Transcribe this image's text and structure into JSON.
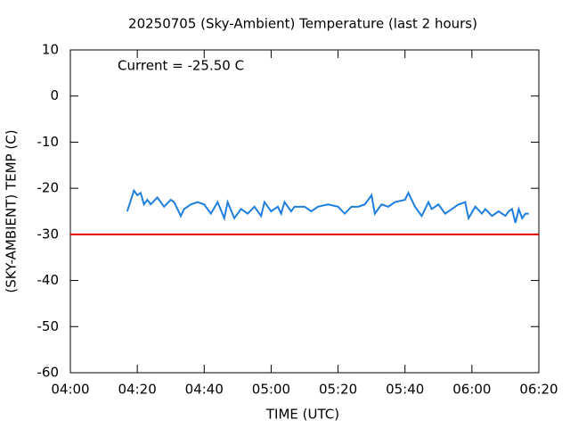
{
  "chart_data": {
    "type": "line",
    "title": "20250705 (Sky-Ambient) Temperature (last 2 hours)",
    "annotation": "Current = -25.50 C",
    "x_label": "TIME (UTC)",
    "y_label": "(SKY-AMBIENT) TEMP (C)",
    "xlim": [
      "04:00",
      "06:20"
    ],
    "xticks": [
      "04:00",
      "04:20",
      "04:40",
      "05:00",
      "05:20",
      "05:40",
      "06:00",
      "06:20"
    ],
    "ylim": [
      -60,
      10
    ],
    "yticks": [
      -60,
      -50,
      -40,
      -30,
      -20,
      -10,
      0,
      10
    ],
    "threshold": -30,
    "threshold_color": "#e00000",
    "series": [
      {
        "color": "#1f7fe0",
        "x": [
          "04:17",
          "04:19",
          "04:20",
          "04:21",
          "04:22",
          "04:23",
          "04:24",
          "04:26",
          "04:28",
          "04:30",
          "04:31",
          "04:33",
          "04:34",
          "04:36",
          "04:38",
          "04:40",
          "04:42",
          "04:44",
          "04:46",
          "04:47",
          "04:49",
          "04:51",
          "04:53",
          "04:55",
          "04:57",
          "04:58",
          "05:00",
          "05:02",
          "05:03",
          "05:04",
          "05:06",
          "05:07",
          "05:10",
          "05:12",
          "05:14",
          "05:17",
          "05:20",
          "05:22",
          "05:24",
          "05:26",
          "05:28",
          "05:30",
          "05:31",
          "05:33",
          "05:35",
          "05:37",
          "05:40",
          "05:41",
          "05:43",
          "05:45",
          "05:47",
          "05:48",
          "05:50",
          "05:52",
          "05:54",
          "05:56",
          "05:58",
          "05:59",
          "06:01",
          "06:03",
          "06:04",
          "06:06",
          "06:08",
          "06:10",
          "06:11",
          "06:12",
          "06:13",
          "06:14",
          "06:15",
          "06:16",
          "06:17"
        ],
        "values": [
          -25,
          -20.5,
          -21.5,
          -21,
          -23.5,
          -22.5,
          -23.5,
          -22,
          -24,
          -22.5,
          -23,
          -26,
          -24.5,
          -23.5,
          -23,
          -23.5,
          -25.5,
          -23,
          -26.5,
          -23,
          -26.5,
          -24.5,
          -25.5,
          -24,
          -26,
          -23,
          -25,
          -24,
          -25.5,
          -23,
          -25,
          -24,
          -24,
          -25,
          -24,
          -23.5,
          -24,
          -25.5,
          -24,
          -24,
          -23.5,
          -21.5,
          -25.5,
          -23.5,
          -24,
          -23,
          -22.5,
          -21,
          -24,
          -26,
          -23,
          -24.5,
          -23.5,
          -25.5,
          -24.5,
          -23.5,
          -23,
          -26.5,
          -24,
          -25.5,
          -24.5,
          -26,
          -25,
          -26,
          -25,
          -24.5,
          -27.5,
          -24.5,
          -26.5,
          -25.5,
          -25.5
        ]
      }
    ]
  }
}
